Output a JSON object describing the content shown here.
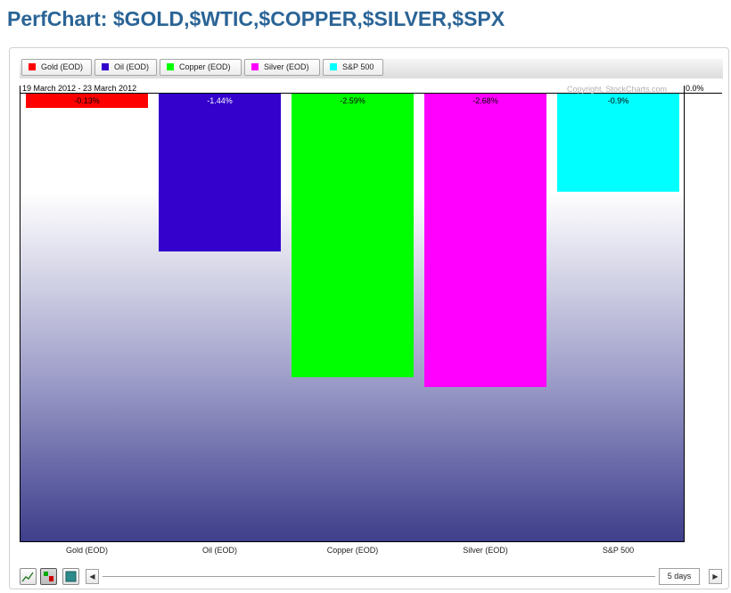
{
  "page": {
    "title": "PerfChart: $GOLD,$WTIC,$COPPER,$SILVER,$SPX"
  },
  "legend": [
    {
      "label": "Gold (EOD)",
      "color": "#ff0000"
    },
    {
      "label": "Oil (EOD)",
      "color": "#3300cc"
    },
    {
      "label": "Copper (EOD)",
      "color": "#00ff00"
    },
    {
      "label": "Silver (EOD)",
      "color": "#ff00ff"
    },
    {
      "label": "S&P 500",
      "color": "#00ffff"
    }
  ],
  "chart_data": {
    "type": "bar",
    "date_range": "19 March 2012 - 23 March 2012",
    "copyright": "Copyright, StockCharts.com",
    "y_reference_label": "0.0%",
    "categories": [
      "Gold (EOD)",
      "Oil (EOD)",
      "Copper (EOD)",
      "Silver (EOD)",
      "S&P 500"
    ],
    "values": [
      -0.13,
      -1.44,
      -2.59,
      -2.68,
      -0.9
    ],
    "value_labels": [
      "-0.13%",
      "-1.44%",
      "-2.59%",
      "-2.68%",
      "-0.9%"
    ],
    "colors": [
      "#ff0000",
      "#3300cc",
      "#00ff00",
      "#ff00ff",
      "#00ffff"
    ],
    "label_colors": [
      "#000000",
      "#ffffff",
      "#000000",
      "#000000",
      "#000000"
    ],
    "ylim": [
      -4.09,
      0
    ],
    "grid": false,
    "legend_position": "top"
  },
  "toolbar": {
    "period_label": "5 days",
    "prev_arrow": "◀",
    "next_arrow": "▶"
  }
}
